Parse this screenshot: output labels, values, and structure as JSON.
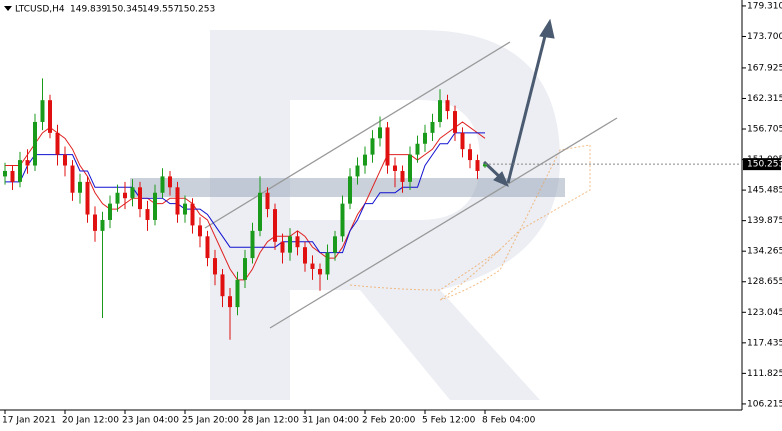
{
  "chart_data": {
    "type": "candlestick",
    "symbol": "LTCUSD,H4",
    "header_ohlc": [
      149.839,
      150.345,
      149.557,
      150.253
    ],
    "categories": [
      "17 Jan 2021",
      null,
      null,
      null,
      null,
      null,
      null,
      null,
      "20 Jan 12:00",
      null,
      null,
      null,
      null,
      null,
      null,
      null,
      "23 Jan 04:00",
      null,
      null,
      null,
      null,
      null,
      null,
      null,
      "25 Jan 20:00",
      null,
      null,
      null,
      null,
      null,
      null,
      null,
      "28 Jan 12:00",
      null,
      null,
      null,
      null,
      null,
      null,
      null,
      "31 Jan 04:00",
      null,
      null,
      null,
      null,
      null,
      null,
      null,
      "2 Feb 20:00",
      null,
      null,
      null,
      null,
      null,
      null,
      null,
      "5 Feb 12:00",
      null,
      null,
      null,
      null,
      null,
      null,
      null,
      "8 Feb 04:00"
    ],
    "open": [
      148,
      149,
      147,
      151,
      150,
      158,
      162,
      156,
      152,
      150,
      145,
      147,
      141,
      138,
      140,
      143,
      145,
      144,
      146,
      142,
      140,
      145,
      148,
      146,
      141,
      143,
      139,
      137,
      133,
      130,
      126,
      124,
      129,
      133,
      138,
      145,
      142,
      136,
      134,
      137,
      135,
      132,
      131,
      130,
      134,
      137,
      143,
      148,
      150,
      152,
      155,
      157,
      150,
      149,
      147,
      152,
      154,
      156,
      158,
      162,
      160,
      156,
      153,
      151,
      149.839
    ],
    "high": [
      150.5,
      150,
      152.5,
      153,
      159.5,
      166,
      163,
      157.5,
      153.5,
      151,
      148.5,
      148,
      142.5,
      141.5,
      144.5,
      146.5,
      147,
      147.5,
      147,
      143.5,
      146.5,
      149.5,
      149,
      147,
      144.5,
      144,
      140.5,
      138,
      134.5,
      131,
      127.5,
      130.5,
      134.5,
      139.5,
      148,
      146,
      143,
      137.5,
      138.5,
      138,
      136,
      133.5,
      132,
      135.5,
      138,
      144.5,
      149.5,
      151.5,
      153.5,
      156.5,
      159,
      158,
      151.5,
      150,
      153.5,
      155.5,
      157.5,
      159.5,
      164,
      163,
      161,
      157,
      154,
      152,
      150.345
    ],
    "low": [
      146.5,
      145.5,
      146,
      148.5,
      149,
      156.5,
      155,
      150,
      148,
      143.5,
      143,
      139.5,
      136,
      122,
      138.5,
      141.5,
      142,
      142.5,
      140.5,
      138,
      139,
      144,
      144.5,
      139.5,
      139.5,
      137.5,
      135,
      131.5,
      128,
      124,
      118,
      122.5,
      127.5,
      132,
      137,
      140.5,
      134.5,
      132,
      132.5,
      133.5,
      130.5,
      129,
      127,
      129,
      132.5,
      136,
      142,
      146.5,
      148.5,
      150.5,
      153.5,
      148.5,
      146,
      145,
      145.5,
      150.5,
      152.5,
      154.5,
      157,
      158.5,
      154.5,
      151.5,
      149.5,
      147.5,
      149.557
    ],
    "close": [
      149,
      147,
      151,
      150,
      158,
      162,
      156,
      152,
      150,
      145,
      147,
      141,
      138,
      140,
      143,
      145,
      144,
      146,
      142,
      140,
      145,
      148,
      146,
      141,
      143,
      139,
      137,
      133,
      130,
      126,
      124,
      129,
      133,
      138,
      145,
      142,
      136,
      134,
      137,
      135,
      132,
      131,
      130,
      134,
      137,
      143,
      148,
      150,
      152,
      155,
      157,
      150,
      149,
      147,
      152,
      154,
      156,
      158,
      162,
      160,
      156,
      153,
      151,
      149,
      150.253
    ],
    "up_color": "#1a9a1a",
    "down_color": "#e01010",
    "series": [
      {
        "color": "#e02020",
        "values": [
          150,
          150,
          150,
          152,
          154,
          156,
          157,
          156,
          155,
          153,
          150,
          148,
          145,
          143,
          142,
          142,
          143,
          144,
          144,
          144,
          143,
          143,
          144,
          144,
          144,
          143,
          141,
          140,
          137,
          134,
          131,
          129,
          129,
          131,
          134,
          136,
          137,
          137,
          137,
          138,
          137,
          135,
          134,
          133,
          133,
          135,
          138,
          141,
          143,
          146,
          149,
          152,
          152,
          152,
          152,
          151,
          152,
          153,
          155,
          156,
          157,
          158,
          157,
          156,
          155
        ]
      },
      {
        "color": "#1010d0",
        "values": [
          147,
          147,
          147,
          150,
          152,
          152,
          152,
          152,
          152,
          152,
          149,
          149,
          146,
          146,
          146,
          146,
          146,
          146,
          144,
          144,
          144,
          144,
          143,
          143,
          142,
          142,
          142,
          141,
          139,
          137,
          135,
          135,
          135,
          135,
          135,
          135,
          135,
          136,
          136,
          136,
          136,
          136,
          134,
          134,
          134,
          134,
          138,
          140,
          143,
          143,
          145,
          145,
          145,
          146,
          146,
          146,
          150,
          152,
          154,
          154,
          156,
          156,
          156,
          156,
          156
        ]
      }
    ],
    "ylim": [
      105.1,
      180.4
    ],
    "yticks": [
      {
        "value": 179.31,
        "label": "179.310"
      },
      {
        "value": 173.7,
        "label": "173.700"
      },
      167.925,
      162.315,
      156.705,
      151.095,
      145.485,
      139.875,
      134.265,
      128.655,
      123.045,
      117.435,
      111.825,
      106.215
    ],
    "last_price": 150.253,
    "grid": false
  }
}
